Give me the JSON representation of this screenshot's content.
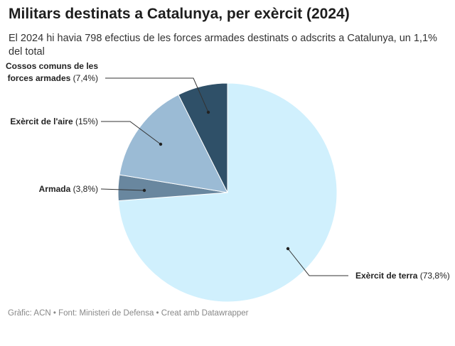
{
  "header": {
    "title": "Militars destinats a Catalunya, per exèrcit (2024)",
    "subtitle": "El 2024 hi havia 798 efectius de les forces armades destinats o adscrits a Catalunya, un 1,1% del total"
  },
  "footer": "Gràfic: ACN • Font: Ministeri de Defensa • Creat amb Datawrapper",
  "chart_data": {
    "type": "pie",
    "title": "Militars destinats a Catalunya, per exèrcit (2024)",
    "unit": "%",
    "slices": [
      {
        "label": "Exèrcit de terra",
        "value": 73.8,
        "display": "(73,8%)",
        "color": "#d0f0fd"
      },
      {
        "label": "Armada",
        "value": 3.8,
        "display": "(3,8%)",
        "color": "#69879f"
      },
      {
        "label": "Exèrcit de l'aire",
        "value": 15,
        "display": "(15%)",
        "color": "#9bbbd5"
      },
      {
        "label": "Cossos comuns de les forces armades",
        "value": 7.4,
        "display": "(7,4%)",
        "color": "#2f5068",
        "label_lines": [
          "Cossos comuns de les",
          "forces armades"
        ]
      }
    ],
    "start": "top",
    "direction": "clockwise",
    "legend": "none"
  }
}
